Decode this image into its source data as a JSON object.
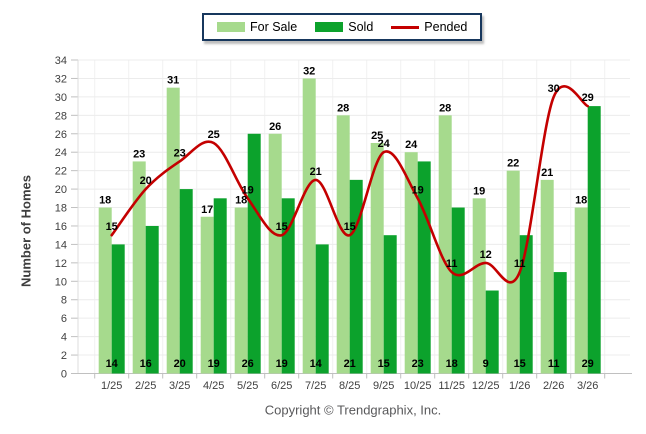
{
  "legend": {
    "items": [
      {
        "label": "For Sale",
        "color": "#A6DA8D",
        "swatch": "box"
      },
      {
        "label": "Sold",
        "color": "#0CA22C",
        "swatch": "box"
      },
      {
        "label": "Pended",
        "color": "#C40000",
        "swatch": "line"
      }
    ]
  },
  "footer": "Copyright © Trendgraphix, Inc.",
  "chart_data": {
    "type": "bar",
    "title": "",
    "categories": [
      "1/25",
      "2/25",
      "3/25",
      "4/25",
      "5/25",
      "6/25",
      "7/25",
      "8/25",
      "9/25",
      "10/25",
      "11/25",
      "12/25",
      "1/26",
      "2/26",
      "3/26"
    ],
    "series": [
      {
        "name": "For Sale",
        "type": "bar",
        "color": "#A6DA8D",
        "values": [
          18,
          23,
          31,
          17,
          18,
          26,
          32,
          28,
          25,
          24,
          28,
          19,
          22,
          21,
          18
        ]
      },
      {
        "name": "Sold",
        "type": "bar",
        "color": "#0CA22C",
        "values": [
          14,
          16,
          20,
          19,
          26,
          19,
          14,
          21,
          15,
          23,
          18,
          9,
          15,
          11,
          29
        ]
      },
      {
        "name": "Pended",
        "type": "line",
        "color": "#C40000",
        "values": [
          15,
          20,
          23,
          25,
          19,
          15,
          21,
          15,
          24,
          19,
          11,
          12,
          11,
          30,
          29
        ]
      }
    ],
    "xlabel": "",
    "ylabel": "Number of Homes",
    "ylim": [
      0,
      34
    ],
    "ytick_step": 2,
    "grid": true,
    "legend_position": "top"
  }
}
